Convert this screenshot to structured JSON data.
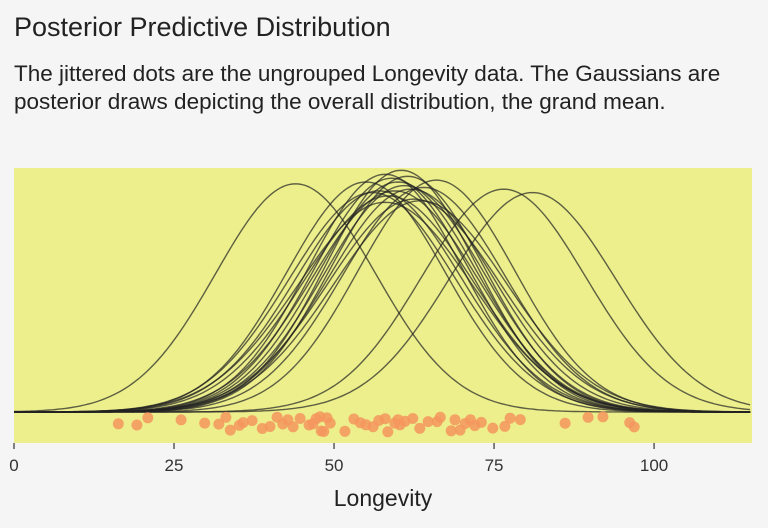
{
  "chart_data": {
    "type": "line",
    "title": "Posterior Predictive Distribution",
    "subtitle": "The jittered dots are the ungrouped Longevity data. The Gaussians are posterior draws depicting the overall distribution, the grand mean.",
    "xlabel": "Longevity",
    "ylabel": "",
    "xlim": [
      0,
      115.3
    ],
    "xticks": [
      0,
      25,
      50,
      75,
      100
    ],
    "xtick_labels": [
      "0",
      "25",
      "50",
      "75",
      "100"
    ],
    "grid": false,
    "colors": {
      "background": "#f5f5f5",
      "panel": "#ecef8c",
      "curve": "#222222",
      "dots": "#f4975e"
    },
    "gaussians": [
      {
        "mean": 44,
        "sd": 12.5
      },
      {
        "mean": 76.5,
        "sd": 12.8
      },
      {
        "mean": 81,
        "sd": 13
      },
      {
        "mean": 66,
        "sd": 12.3
      },
      {
        "mean": 58,
        "sd": 12
      },
      {
        "mean": 59,
        "sd": 12.2
      },
      {
        "mean": 60,
        "sd": 12.4
      },
      {
        "mean": 61,
        "sd": 12.6
      },
      {
        "mean": 62,
        "sd": 12.8
      },
      {
        "mean": 57,
        "sd": 12.9
      },
      {
        "mean": 58.5,
        "sd": 13.2
      },
      {
        "mean": 60.5,
        "sd": 11.8
      },
      {
        "mean": 63.5,
        "sd": 13.5
      },
      {
        "mean": 56,
        "sd": 13
      },
      {
        "mean": 59.5,
        "sd": 12.9
      },
      {
        "mean": 61.5,
        "sd": 12.1
      },
      {
        "mean": 64,
        "sd": 12.7
      },
      {
        "mean": 55,
        "sd": 12.4
      },
      {
        "mean": 62.5,
        "sd": 13.4
      },
      {
        "mean": 58,
        "sd": 13.6
      }
    ],
    "points": [
      16.3,
      19.2,
      20.9,
      26.1,
      29.8,
      32,
      33.1,
      33.8,
      35.2,
      35.8,
      37.2,
      38.8,
      40,
      41.1,
      42,
      42.8,
      43.6,
      44.7,
      46.1,
      46.7,
      47.2,
      47.8,
      48,
      48.4,
      48.9,
      49.4,
      51.7,
      53.1,
      54.1,
      55,
      56.1,
      57,
      58,
      58.4,
      59.5,
      60,
      60.3,
      61.1,
      62.3,
      63.4,
      64.7,
      66.1,
      66.6,
      68.3,
      68.9,
      69.7,
      70.5,
      71.3,
      72,
      73,
      74.8,
      76.7,
      77.5,
      79.1,
      86.1,
      89.7,
      92,
      96.2,
      96.9
    ]
  }
}
